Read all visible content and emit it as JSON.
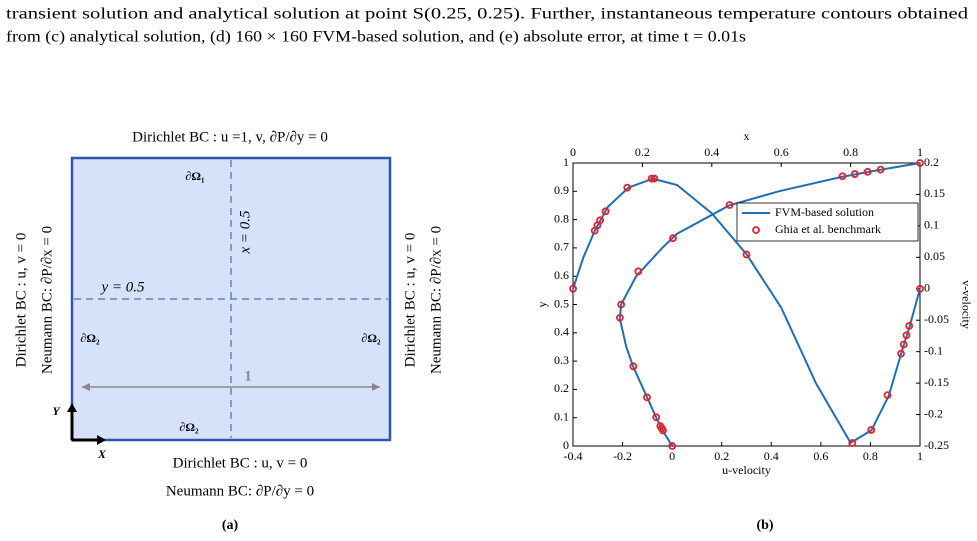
{
  "caption": [
    "transient solution and analytical solution at point S(0.25, 0.25). Further, instantaneous temperature contours obtained",
    "from (c) analytical solution, (d) 160 × 160 FVM-based solution, and (e) absolute error, at time t = 0.01s"
  ],
  "panel_a": {
    "label": "(a)",
    "top_bc": "Dirichlet BC : u =1, v, ∂P/∂y = 0",
    "left_bc": [
      "Dirichlet BC : u, v = 0",
      "Neumann BC: ∂P/∂x = 0"
    ],
    "right_bc": [
      "Dirichlet BC : u, v = 0",
      "Neumann BC: ∂P/∂x = 0"
    ],
    "bottom_bc": [
      "Dirichlet BC : u, v = 0",
      "Neumann BC: ∂P/∂y = 0"
    ],
    "boundary_top": "∂Ω₁",
    "boundary_left": "∂Ω₂",
    "boundary_right": "∂Ω₂",
    "boundary_bottom": "∂Ω₂",
    "vertical_line": "x = 0.5",
    "horizontal_line": "y = 0.5",
    "length": "1",
    "axis_x": "X",
    "axis_y": "Y"
  },
  "chart_data": {
    "type": "line",
    "label": "(b)",
    "xlabel": "u-velocity",
    "ylabel": "y",
    "x2label": "x",
    "y2label": "v-velocity",
    "xlim": [
      -0.4,
      1
    ],
    "xticks": [
      -0.4,
      -0.2,
      0,
      0.2,
      0.4,
      0.6,
      0.8,
      1
    ],
    "ylim": [
      0,
      1
    ],
    "yticks": [
      0,
      0.1,
      0.2,
      0.3,
      0.4,
      0.5,
      0.6,
      0.7,
      0.8,
      0.9,
      1
    ],
    "x2lim": [
      0,
      1
    ],
    "x2ticks": [
      0,
      0.2,
      0.4,
      0.6,
      0.8,
      1
    ],
    "y2lim": [
      -0.25,
      0.2
    ],
    "y2ticks": [
      -0.25,
      -0.2,
      -0.15,
      -0.1,
      -0.05,
      0,
      0.05,
      0.1,
      0.15,
      0.2
    ],
    "legend": "upper right",
    "series": [
      {
        "name": "FVM-based solution",
        "color": "#1f6fb4",
        "style": "line",
        "u_profile": {
          "u": [
            0,
            -0.035,
            -0.064,
            -0.1,
            -0.157,
            -0.185,
            -0.211,
            -0.206,
            -0.145,
            -0.04,
            0.02,
            0.23,
            0.43,
            0.68,
            0.8,
            1
          ],
          "y": [
            0,
            0.05,
            0.1,
            0.17,
            0.28,
            0.35,
            0.45,
            0.5,
            0.6,
            0.7,
            0.75,
            0.85,
            0.9,
            0.95,
            0.97,
            1
          ]
        },
        "v_profile": {
          "x": [
            0,
            0.03,
            0.0625,
            0.1,
            0.16,
            0.23,
            0.3,
            0.4,
            0.5,
            0.6,
            0.7,
            0.8,
            0.86,
            0.91,
            0.95,
            0.97,
            1
          ],
          "v": [
            0,
            0.05,
            0.092,
            0.13,
            0.161,
            0.175,
            0.165,
            0.12,
            0.055,
            -0.03,
            -0.15,
            -0.245,
            -0.225,
            -0.17,
            -0.095,
            -0.06,
            0
          ]
        }
      },
      {
        "name": "Ghia et al. benchmark",
        "color": "#e8202a",
        "style": "marker",
        "u_profile": {
          "u": [
            1,
            0.84123,
            0.78871,
            0.73722,
            0.68717,
            0.23151,
            0.00332,
            -0.13641,
            -0.20581,
            -0.2109,
            -0.15662,
            -0.1015,
            -0.06434,
            -0.04775,
            -0.04192,
            -0.03717,
            0
          ],
          "y": [
            1,
            0.9766,
            0.9688,
            0.9609,
            0.9531,
            0.8516,
            0.7344,
            0.6172,
            0.5,
            0.4531,
            0.2813,
            0.1719,
            0.1016,
            0.0703,
            0.0625,
            0.0547,
            0
          ]
        },
        "v_profile": {
          "x": [
            1,
            0.9688,
            0.9609,
            0.9531,
            0.9453,
            0.9063,
            0.8594,
            0.8047,
            0.5,
            0.2344,
            0.2266,
            0.1563,
            0.0938,
            0.0781,
            0.0703,
            0.0625,
            0
          ],
          "v": [
            0,
            -0.05906,
            -0.07391,
            -0.08864,
            -0.10313,
            -0.16914,
            -0.22445,
            -0.24533,
            0.05454,
            0.17527,
            0.17507,
            0.16077,
            0.12317,
            0.1089,
            0.10091,
            0.09233,
            0
          ]
        }
      }
    ]
  }
}
